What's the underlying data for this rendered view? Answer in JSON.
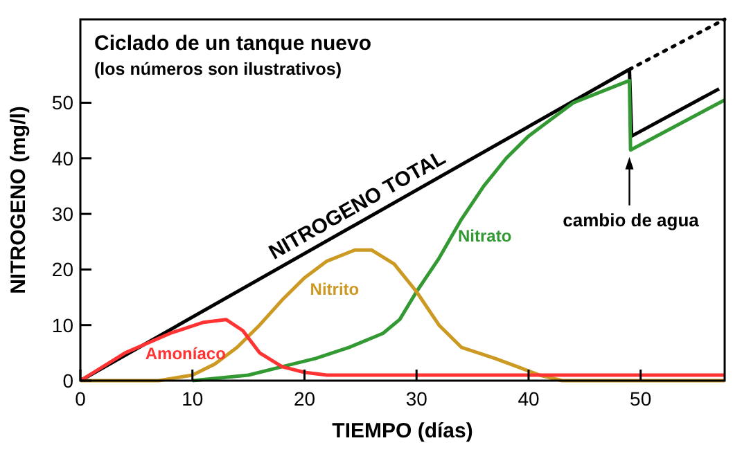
{
  "chart_data": {
    "type": "line",
    "title": "Ciclado de un tanque nuevo",
    "subtitle": "(los números son ilustrativos)",
    "xlabel": "TIEMPO (días)",
    "ylabel": "NITROGENO (mg/l)",
    "xlim": [
      0,
      57.5
    ],
    "ylim": [
      0,
      65
    ],
    "xticks": [
      0,
      10,
      20,
      30,
      40,
      50
    ],
    "yticks": [
      0,
      10,
      20,
      30,
      40,
      50
    ],
    "grid": false,
    "marker": "none",
    "series": [
      {
        "name": "NITROGENO TOTAL",
        "color": "#000000",
        "x": [
          0,
          49,
          49.2,
          57
        ],
        "values": [
          0,
          56,
          44,
          52.5
        ]
      },
      {
        "color": "#000000",
        "x": [
          49,
          57.5
        ],
        "values": [
          56,
          65
        ],
        "line_style": "dotted"
      },
      {
        "name": "Nitrato",
        "color": "#339933",
        "x": [
          10,
          15,
          18,
          21,
          24,
          27,
          28.5,
          30,
          32,
          34,
          36,
          38,
          40,
          42,
          44,
          46.5,
          49,
          49.1,
          57.5
        ],
        "values": [
          0,
          1,
          2.5,
          4,
          6,
          8.5,
          11,
          16,
          22,
          29,
          35,
          40,
          44,
          47,
          50,
          52,
          54,
          41.5,
          50.5
        ]
      },
      {
        "name": "Nitrito",
        "color": "#cc9922",
        "x": [
          0,
          7,
          10,
          12,
          14,
          16,
          18,
          20,
          22,
          24.5,
          26,
          28,
          30,
          32,
          34,
          37,
          39,
          41,
          43,
          57.5
        ],
        "values": [
          0,
          0,
          1,
          3,
          6,
          10,
          14.5,
          18.5,
          21.5,
          23.5,
          23.5,
          21,
          16,
          10,
          6,
          4,
          2.5,
          1,
          0,
          0
        ]
      },
      {
        "name": "Amoníaco",
        "color": "#ff3333",
        "x": [
          0,
          4,
          8,
          11,
          13,
          14.5,
          16,
          18,
          20,
          22,
          57.5
        ],
        "values": [
          0,
          5,
          8.5,
          10.5,
          11,
          9,
          5,
          2.5,
          1.5,
          1,
          1
        ]
      }
    ],
    "annotations": [
      {
        "text": "cambio de agua",
        "x": 49,
        "y": 41.5
      }
    ]
  }
}
